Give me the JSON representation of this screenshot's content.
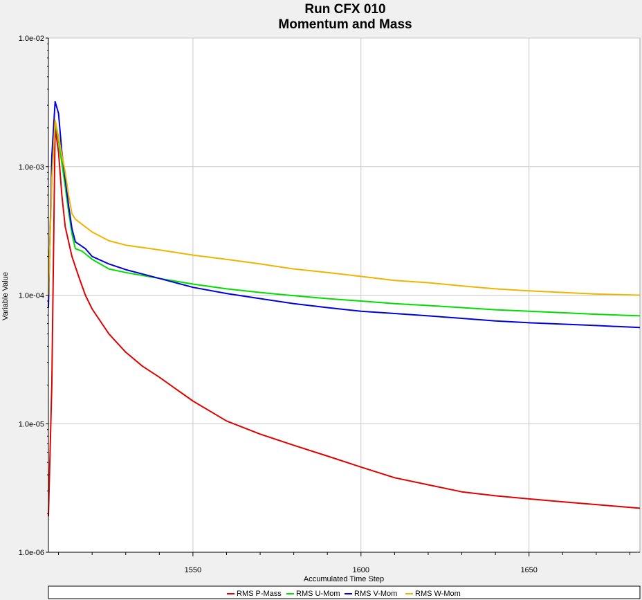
{
  "chart_data": {
    "type": "line",
    "title": "Run CFX 010",
    "subtitle": "Momentum and Mass",
    "xlabel": "Accumulated Time Step",
    "ylabel": "Variable Value",
    "xlim": [
      1507,
      1683
    ],
    "ylim": [
      1e-06,
      0.01
    ],
    "yscale": "log",
    "x_ticks": [
      1550,
      1600,
      1650
    ],
    "x_tick_labels": [
      "1550",
      "1600",
      "1650"
    ],
    "y_ticks": [
      0.01,
      0.001,
      0.0001,
      1e-05,
      1e-06
    ],
    "y_tick_labels": [
      "1.0e-02",
      "1.0e-03",
      "1.0e-04",
      "1.0e-05",
      "1.0e-06"
    ],
    "grid": true,
    "legend_position": "bottom",
    "series": [
      {
        "name": "RMS P-Mass",
        "color": "#e00000",
        "points": [
          [
            1507,
            1.9e-06
          ],
          [
            1508,
            2e-05
          ],
          [
            1509,
            0.002
          ],
          [
            1510,
            0.0013
          ],
          [
            1511,
            0.0006
          ],
          [
            1512,
            0.00034
          ],
          [
            1514,
            0.0002
          ],
          [
            1516,
            0.00014
          ],
          [
            1518,
            0.0001
          ],
          [
            1520,
            7.8e-05
          ],
          [
            1525,
            5e-05
          ],
          [
            1530,
            3.6e-05
          ],
          [
            1535,
            2.8e-05
          ],
          [
            1540,
            2.3e-05
          ],
          [
            1550,
            1.5e-05
          ],
          [
            1560,
            1.05e-05
          ],
          [
            1570,
            8.3e-06
          ],
          [
            1580,
            6.8e-06
          ],
          [
            1590,
            5.6e-06
          ],
          [
            1600,
            4.6e-06
          ],
          [
            1610,
            3.8e-06
          ],
          [
            1620,
            3.35e-06
          ],
          [
            1630,
            2.95e-06
          ],
          [
            1640,
            2.75e-06
          ],
          [
            1650,
            2.6e-06
          ],
          [
            1660,
            2.47e-06
          ],
          [
            1670,
            2.35e-06
          ],
          [
            1683,
            2.2e-06
          ]
        ]
      },
      {
        "name": "RMS U-Mom",
        "color": "#00dd00",
        "points": [
          [
            1507,
            0.0001
          ],
          [
            1508,
            0.0008
          ],
          [
            1509,
            0.0022
          ],
          [
            1510,
            0.0016
          ],
          [
            1512,
            0.0007
          ],
          [
            1513,
            0.00045
          ],
          [
            1514,
            0.0003
          ],
          [
            1515,
            0.00023
          ],
          [
            1517,
            0.00022
          ],
          [
            1520,
            0.00019
          ],
          [
            1525,
            0.00016
          ],
          [
            1530,
            0.00015
          ],
          [
            1540,
            0.000135
          ],
          [
            1550,
            0.000122
          ],
          [
            1560,
            0.000112
          ],
          [
            1570,
            0.000105
          ],
          [
            1580,
            9.9e-05
          ],
          [
            1590,
            9.4e-05
          ],
          [
            1600,
            9e-05
          ],
          [
            1610,
            8.6e-05
          ],
          [
            1620,
            8.3e-05
          ],
          [
            1630,
            8e-05
          ],
          [
            1640,
            7.7e-05
          ],
          [
            1650,
            7.5e-05
          ],
          [
            1660,
            7.3e-05
          ],
          [
            1670,
            7.1e-05
          ],
          [
            1683,
            6.9e-05
          ]
        ]
      },
      {
        "name": "RMS V-Mom",
        "color": "#0000dd",
        "points": [
          [
            1507,
            8e-05
          ],
          [
            1508,
            0.0012
          ],
          [
            1509,
            0.0032
          ],
          [
            1510,
            0.0026
          ],
          [
            1511,
            0.0013
          ],
          [
            1513,
            0.0005
          ],
          [
            1514,
            0.00033
          ],
          [
            1515,
            0.00026
          ],
          [
            1518,
            0.00023
          ],
          [
            1520,
            0.0002
          ],
          [
            1525,
            0.000175
          ],
          [
            1530,
            0.000158
          ],
          [
            1540,
            0.000135
          ],
          [
            1550,
            0.000115
          ],
          [
            1560,
            0.000103
          ],
          [
            1570,
            9.4e-05
          ],
          [
            1580,
            8.6e-05
          ],
          [
            1590,
            8e-05
          ],
          [
            1600,
            7.5e-05
          ],
          [
            1610,
            7.2e-05
          ],
          [
            1620,
            6.9e-05
          ],
          [
            1630,
            6.6e-05
          ],
          [
            1640,
            6.3e-05
          ],
          [
            1650,
            6.1e-05
          ],
          [
            1660,
            5.95e-05
          ],
          [
            1670,
            5.8e-05
          ],
          [
            1683,
            5.6e-05
          ]
        ]
      },
      {
        "name": "RMS W-Mom",
        "color": "#f0b400",
        "points": [
          [
            1507,
            0.0001
          ],
          [
            1508,
            0.0008
          ],
          [
            1509,
            0.0023
          ],
          [
            1510,
            0.0017
          ],
          [
            1512,
            0.0009
          ],
          [
            1513,
            0.0006
          ],
          [
            1514,
            0.00043
          ],
          [
            1515,
            0.00039
          ],
          [
            1518,
            0.00034
          ],
          [
            1520,
            0.00031
          ],
          [
            1525,
            0.000265
          ],
          [
            1530,
            0.000245
          ],
          [
            1540,
            0.000225
          ],
          [
            1550,
            0.000205
          ],
          [
            1560,
            0.00019
          ],
          [
            1570,
            0.000175
          ],
          [
            1580,
            0.00016
          ],
          [
            1590,
            0.00015
          ],
          [
            1600,
            0.00014
          ],
          [
            1610,
            0.00013
          ],
          [
            1620,
            0.000125
          ],
          [
            1630,
            0.000118
          ],
          [
            1640,
            0.000112
          ],
          [
            1650,
            0.000108
          ],
          [
            1660,
            0.000105
          ],
          [
            1670,
            0.000102
          ],
          [
            1683,
            0.0001
          ]
        ]
      }
    ]
  }
}
